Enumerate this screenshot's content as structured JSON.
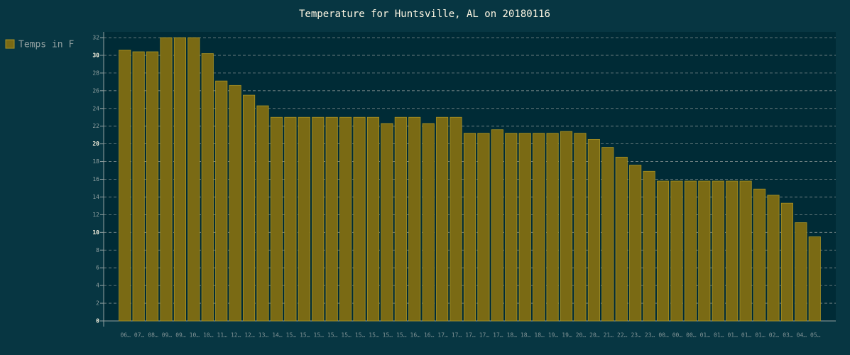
{
  "chart_data": {
    "type": "bar",
    "title": "Temperature for Huntsville, AL on 20180116",
    "legend": "Temps in F",
    "color": "#7a6a14",
    "categories": [
      "06…",
      "07…",
      "08…",
      "09…",
      "09…",
      "10…",
      "10…",
      "11…",
      "12…",
      "12…",
      "13…",
      "14…",
      "15…",
      "15…",
      "15…",
      "15…",
      "15…",
      "15…",
      "15…",
      "15…",
      "15…",
      "16…",
      "16…",
      "17…",
      "17…",
      "17…",
      "17…",
      "17…",
      "18…",
      "18…",
      "18…",
      "19…",
      "19…",
      "20…",
      "20…",
      "21…",
      "22…",
      "23…",
      "23…",
      "00…",
      "00…",
      "00…",
      "01…",
      "01…",
      "01…",
      "01…",
      "01…",
      "02…",
      "03…",
      "04…",
      "05…"
    ],
    "values": [
      30.6,
      30.4,
      30.4,
      32,
      32,
      32,
      30.2,
      27.1,
      26.6,
      25.5,
      24.3,
      23,
      23,
      23,
      23,
      23,
      23,
      23,
      23,
      22.3,
      23,
      23,
      22.3,
      23,
      23,
      21.2,
      21.2,
      21.6,
      21.2,
      21.2,
      21.2,
      21.2,
      21.4,
      21.2,
      20.5,
      19.6,
      18.5,
      17.6,
      16.9,
      15.8,
      15.8,
      15.8,
      15.8,
      15.8,
      15.8,
      15.8,
      14.9,
      14.2,
      13.3,
      11.1,
      9.5
    ],
    "ylim": [
      0,
      32
    ],
    "yticks": [
      0,
      2,
      4,
      6,
      8,
      10,
      12,
      14,
      16,
      18,
      20,
      22,
      24,
      26,
      28,
      30,
      32
    ],
    "grid": true
  }
}
